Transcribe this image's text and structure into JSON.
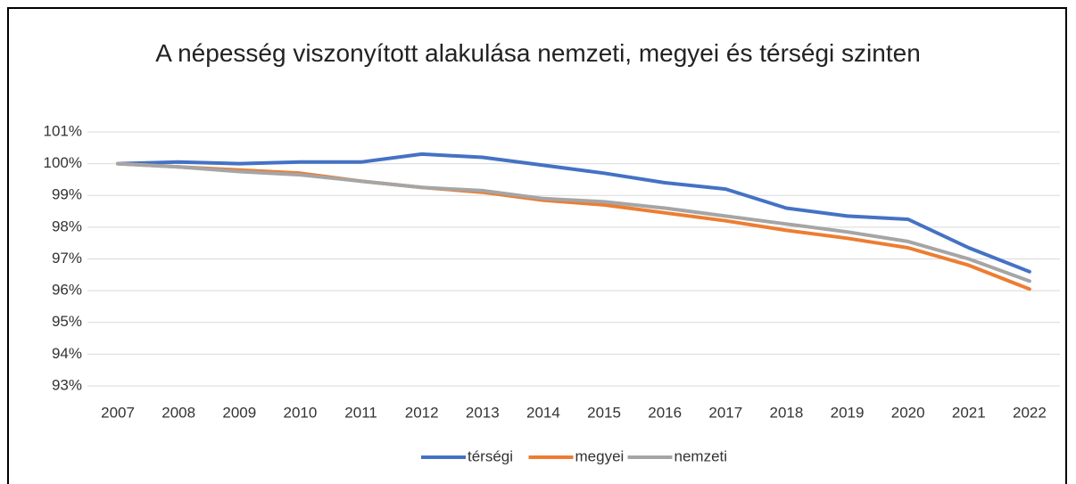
{
  "chart_data": {
    "type": "line",
    "title": "A népesség viszonyított alakulása nemzeti, megyei és térségi szinten",
    "categories": [
      "2007",
      "2008",
      "2009",
      "2010",
      "2011",
      "2012",
      "2013",
      "2014",
      "2015",
      "2016",
      "2017",
      "2018",
      "2019",
      "2020",
      "2021",
      "2022"
    ],
    "series": [
      {
        "name": "térségi",
        "color": "#4472c4",
        "values": [
          100,
          100.05,
          100.0,
          100.05,
          100.05,
          100.3,
          100.2,
          99.95,
          99.7,
          99.4,
          99.2,
          98.6,
          98.35,
          98.25,
          97.35,
          96.6
        ]
      },
      {
        "name": "megyei",
        "color": "#ed7d31",
        "values": [
          100,
          99.9,
          99.8,
          99.7,
          99.45,
          99.25,
          99.1,
          98.85,
          98.7,
          98.45,
          98.2,
          97.9,
          97.65,
          97.35,
          96.8,
          96.05
        ]
      },
      {
        "name": "nemzeti",
        "color": "#a5a5a5",
        "values": [
          100,
          99.9,
          99.75,
          99.65,
          99.45,
          99.25,
          99.15,
          98.9,
          98.8,
          98.6,
          98.35,
          98.1,
          97.85,
          97.55,
          97.0,
          96.3
        ]
      }
    ],
    "ylim": [
      93,
      101
    ],
    "yticks": [
      {
        "value": 93,
        "label": "93%"
      },
      {
        "value": 94,
        "label": "94%"
      },
      {
        "value": 95,
        "label": "95%"
      },
      {
        "value": 96,
        "label": "96%"
      },
      {
        "value": 97,
        "label": "97%"
      },
      {
        "value": 98,
        "label": "98%"
      },
      {
        "value": 99,
        "label": "99%"
      },
      {
        "value": 100,
        "label": "100%"
      },
      {
        "value": 101,
        "label": "101%"
      }
    ],
    "grid": true,
    "legend": "bottom"
  }
}
